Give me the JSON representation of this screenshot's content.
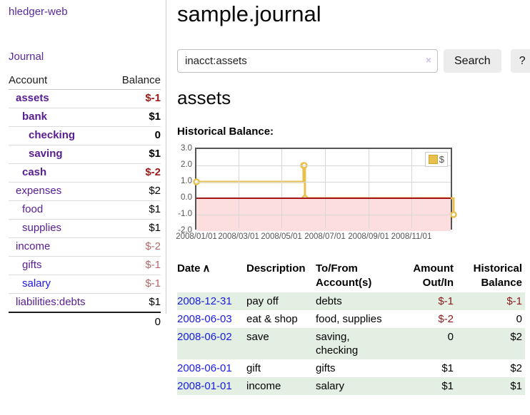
{
  "app": {
    "title": "hledger-web"
  },
  "sidebar": {
    "journal_link": "Journal",
    "table": {
      "account_header": "Account",
      "balance_header": "Balance"
    },
    "accounts": [
      {
        "name": "assets",
        "balance": "$-1",
        "depth": 1,
        "bold": true,
        "negative": true,
        "muted": false,
        "blue": false
      },
      {
        "name": "bank",
        "balance": "$1",
        "depth": 2,
        "bold": true,
        "negative": false,
        "muted": false,
        "blue": false
      },
      {
        "name": "checking",
        "balance": "0",
        "depth": 3,
        "bold": true,
        "negative": false,
        "muted": false,
        "blue": false
      },
      {
        "name": "saving",
        "balance": "$1",
        "depth": 3,
        "bold": true,
        "negative": false,
        "muted": false,
        "blue": false
      },
      {
        "name": "cash",
        "balance": "$-2",
        "depth": 2,
        "bold": true,
        "negative": true,
        "muted": false,
        "blue": false
      },
      {
        "name": "expenses",
        "balance": "$2",
        "depth": 1,
        "bold": false,
        "negative": false,
        "muted": false,
        "blue": false
      },
      {
        "name": "food",
        "balance": "$1",
        "depth": 2,
        "bold": false,
        "negative": false,
        "muted": false,
        "blue": false
      },
      {
        "name": "supplies",
        "balance": "$1",
        "depth": 2,
        "bold": false,
        "negative": false,
        "muted": false,
        "blue": false
      },
      {
        "name": "income",
        "balance": "$-2",
        "depth": 1,
        "bold": false,
        "negative": true,
        "muted": true,
        "blue": false
      },
      {
        "name": "gifts",
        "balance": "$-1",
        "depth": 2,
        "bold": false,
        "negative": true,
        "muted": true,
        "blue": false
      },
      {
        "name": "salary",
        "balance": "$-1",
        "depth": 2,
        "bold": false,
        "negative": true,
        "muted": true,
        "blue": true
      },
      {
        "name": "liabilities:debts",
        "balance": "$1",
        "depth": 1,
        "bold": false,
        "negative": false,
        "muted": false,
        "blue": false
      }
    ],
    "total": "0"
  },
  "main": {
    "title": "sample.journal",
    "search": {
      "value": "inacct:assets",
      "clear_icon": "×",
      "button_label": "Search",
      "help_label": "?"
    },
    "account_title": "assets",
    "chart_label": "Historical Balance:"
  },
  "chart_data": {
    "type": "line",
    "title": "Historical Balance",
    "legend": {
      "label": "$",
      "position": "top-right"
    },
    "series": [
      {
        "name": "$",
        "color": "#e8c14d",
        "dates": [
          "2008-01-01",
          "2008-06-01",
          "2008-06-02",
          "2008-06-03",
          "2008-12-31"
        ],
        "values": [
          1,
          2,
          2,
          0,
          -1
        ],
        "days": [
          0,
          152,
          153,
          154,
          365
        ],
        "style": "steps-with-open-circle-markers"
      }
    ],
    "x_ticks": [
      {
        "day": 0,
        "label": "2008/01/01"
      },
      {
        "day": 60,
        "label": "2008/03/01"
      },
      {
        "day": 121,
        "label": "2008/05/01"
      },
      {
        "day": 182,
        "label": "2008/07/01"
      },
      {
        "day": 244,
        "label": "2008/09/01"
      },
      {
        "day": 305,
        "label": "2008/11/01"
      }
    ],
    "y_ticks": [
      "3.0",
      "2.0",
      "1.0",
      "0.0",
      "-1.0",
      "-2.0"
    ],
    "y_tick_values": [
      3,
      2,
      1,
      0,
      -1,
      -2
    ],
    "xlim_days": [
      0,
      365
    ],
    "ylim": [
      -2,
      3
    ],
    "negative_region_below": 0,
    "grid": true
  },
  "table": {
    "sort_indicator": "∧",
    "headers": [
      {
        "label": "Date",
        "align": "left",
        "sorted": true
      },
      {
        "label": "Description",
        "align": "left",
        "sorted": false
      },
      {
        "label": "To/From Account(s)",
        "align": "left",
        "sorted": false
      },
      {
        "label": "Amount Out/In",
        "align": "right",
        "sorted": false
      },
      {
        "label": "Historical Balance",
        "align": "right",
        "sorted": false
      }
    ],
    "rows": [
      {
        "date": "2008-12-31",
        "description": "pay off",
        "accounts": "debts",
        "amount": "$-1",
        "balance": "$-1",
        "amount_negative": true,
        "balance_negative": true
      },
      {
        "date": "2008-06-03",
        "description": "eat & shop",
        "accounts": "food, supplies",
        "amount": "$-2",
        "balance": "0",
        "amount_negative": true,
        "balance_negative": false
      },
      {
        "date": "2008-06-02",
        "description": "save",
        "accounts": "saving, checking",
        "amount": "0",
        "balance": "$2",
        "amount_negative": false,
        "balance_negative": false
      },
      {
        "date": "2008-06-01",
        "description": "gift",
        "accounts": "gifts",
        "amount": "$1",
        "balance": "$2",
        "amount_negative": false,
        "balance_negative": false
      },
      {
        "date": "2008-01-01",
        "description": "income",
        "accounts": "salary",
        "amount": "$1",
        "balance": "$1",
        "amount_negative": false,
        "balance_negative": false
      }
    ]
  },
  "colors": {
    "purple_link": "#571d91",
    "blue_link": "#2016e8",
    "negative": "#9e1919",
    "negative_muted": "#b16a6a",
    "table_negative": "#8b1a1a",
    "row_stripe_green": "#e2efe2",
    "chart_line_gold": "#e8c14d",
    "chart_negative_fill": "#fbdedd",
    "chart_zero_line": "#a31414",
    "button_bg": "#ececec"
  }
}
